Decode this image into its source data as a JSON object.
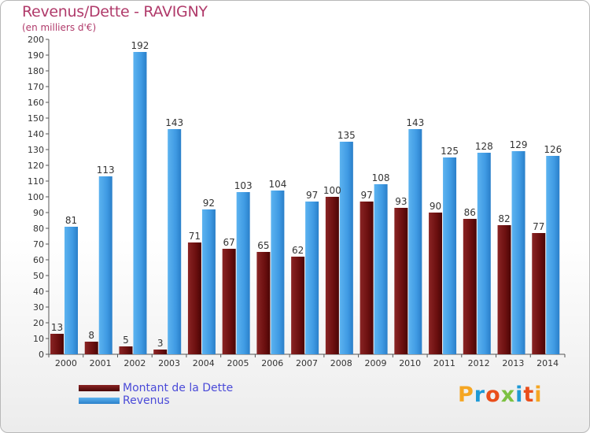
{
  "header": {
    "title": "Revenus/Dette - RAVIGNY",
    "subtitle": "(en milliers d'€)"
  },
  "legend": {
    "items": [
      {
        "label": "Montant de la Dette",
        "color": "#6b0f0f"
      },
      {
        "label": "Revenus",
        "color": "#4aa3e8"
      }
    ]
  },
  "logo": {
    "letters": [
      {
        "ch": "P",
        "color": "#f5a623"
      },
      {
        "ch": "r",
        "color": "#1f9ad6"
      },
      {
        "ch": "o",
        "color": "#e94e1b"
      },
      {
        "ch": "x",
        "color": "#7cc142"
      },
      {
        "ch": "i",
        "color": "#1f9ad6"
      },
      {
        "ch": "t",
        "color": "#e94e1b"
      },
      {
        "ch": "i",
        "color": "#f5a623"
      }
    ]
  },
  "chart_data": {
    "type": "bar",
    "categories": [
      "2000",
      "2001",
      "2002",
      "2003",
      "2004",
      "2005",
      "2006",
      "2007",
      "2008",
      "2009",
      "2010",
      "2011",
      "2012",
      "2013",
      "2014"
    ],
    "series": [
      {
        "name": "Montant de la Dette",
        "color": "#6b0f0f",
        "values": [
          13,
          8,
          5,
          3,
          71,
          67,
          65,
          62,
          100,
          97,
          93,
          90,
          86,
          82,
          77
        ]
      },
      {
        "name": "Revenus",
        "color": "#4aa3e8",
        "values": [
          81,
          113,
          192,
          143,
          92,
          103,
          104,
          97,
          135,
          108,
          143,
          125,
          128,
          129,
          126
        ]
      }
    ],
    "ylim": [
      0,
      200
    ],
    "ytick_step": 10,
    "grid": false
  }
}
